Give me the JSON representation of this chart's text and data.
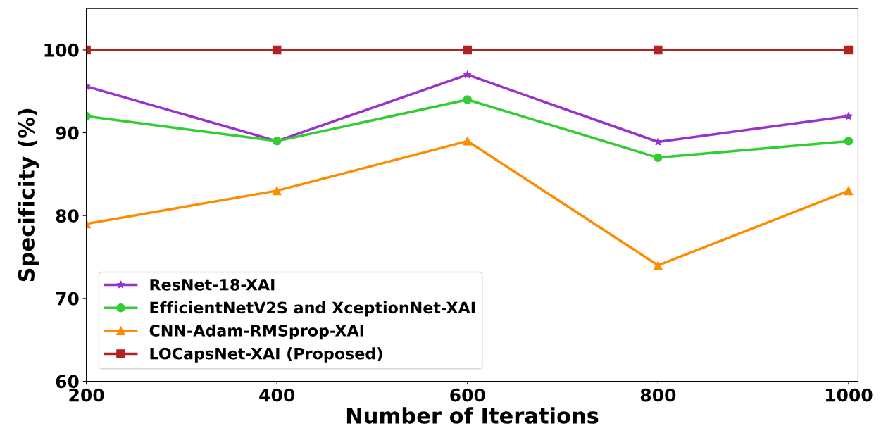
{
  "chart_data": {
    "type": "line",
    "xlabel": "Number of Iterations",
    "ylabel": "Specificity (%)",
    "x": [
      200,
      400,
      600,
      800,
      1000
    ],
    "series": [
      {
        "name": "ResNet-18-XAI",
        "color": "#9932cc",
        "marker": "star",
        "values": [
          95.6,
          89,
          97,
          88.9,
          92
        ]
      },
      {
        "name": "EfficientNetV2S and XceptionNet-XAI",
        "color": "#32cd32",
        "marker": "circle",
        "values": [
          92,
          89,
          94,
          87,
          89
        ]
      },
      {
        "name": "CNN-Adam-RMSprop-XAI",
        "color": "#ff8c00",
        "marker": "triangle",
        "values": [
          79,
          83,
          89,
          74,
          83
        ]
      },
      {
        "name": "LOCapsNet-XAI (Proposed)",
        "color": "#b22222",
        "marker": "square",
        "values": [
          100,
          100,
          100,
          100,
          100
        ]
      }
    ],
    "xlim": [
      200,
      1010
    ],
    "xticks": [
      200,
      400,
      600,
      800,
      1000
    ],
    "ylim": [
      60,
      105
    ],
    "yticks": [
      60,
      70,
      80,
      90,
      100
    ],
    "grid": false,
    "legend": "bottom left",
    "line_style": "solid"
  }
}
